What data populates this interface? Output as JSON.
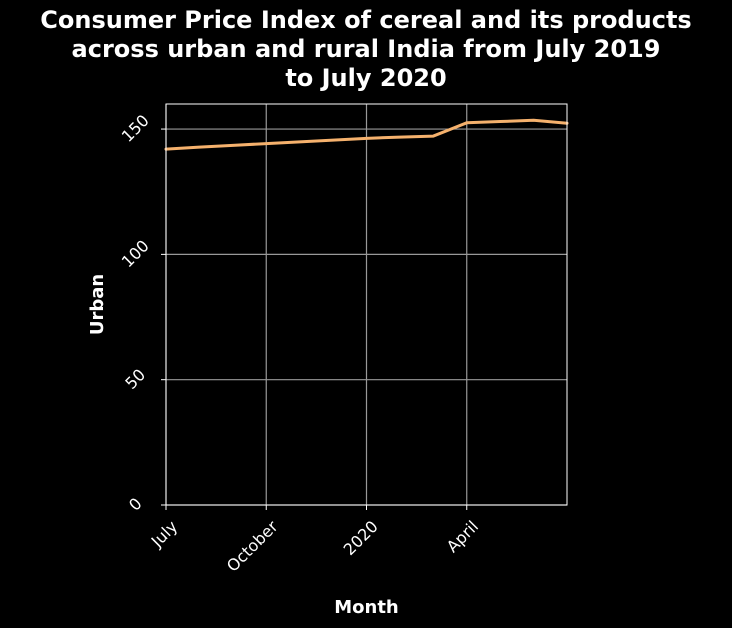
{
  "chart_data": {
    "type": "line",
    "title": "Consumer Price Index of cereal and its products\nacross urban and rural India from July 2019\nto July 2020",
    "xlabel": "Month",
    "ylabel": "Urban",
    "x": [
      "2019-07",
      "2019-08",
      "2019-09",
      "2019-10",
      "2019-11",
      "2019-12",
      "2020-01",
      "2020-02",
      "2020-03",
      "2020-04",
      "2020-05",
      "2020-06",
      "2020-07"
    ],
    "x_tick_values": [
      "2019-07",
      "2019-10",
      "2020-01",
      "2020-04"
    ],
    "x_tick_labels": [
      "July",
      "October",
      "2020",
      "April"
    ],
    "series": [
      {
        "values": [
          142.0,
          142.8,
          143.5,
          144.2,
          144.9,
          145.6,
          146.3,
          146.8,
          147.2,
          152.5,
          153.0,
          153.5,
          152.3
        ],
        "color": "#f5b16d"
      }
    ],
    "ylim": [
      0,
      160
    ],
    "y_ticks": [
      0,
      50,
      100,
      150
    ],
    "grid": true
  }
}
